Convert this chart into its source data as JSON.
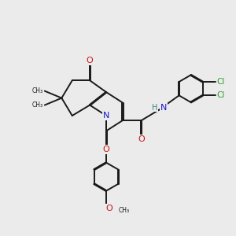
{
  "bg_color": "#ebebeb",
  "bond_color": "#1a1a1a",
  "n_color": "#1515cc",
  "o_color": "#cc1515",
  "cl_color": "#2da02d",
  "h_color": "#3a8080",
  "line_width": 1.4,
  "dbo": 0.018,
  "xlim": [
    0,
    10
  ],
  "ylim": [
    0,
    10
  ]
}
